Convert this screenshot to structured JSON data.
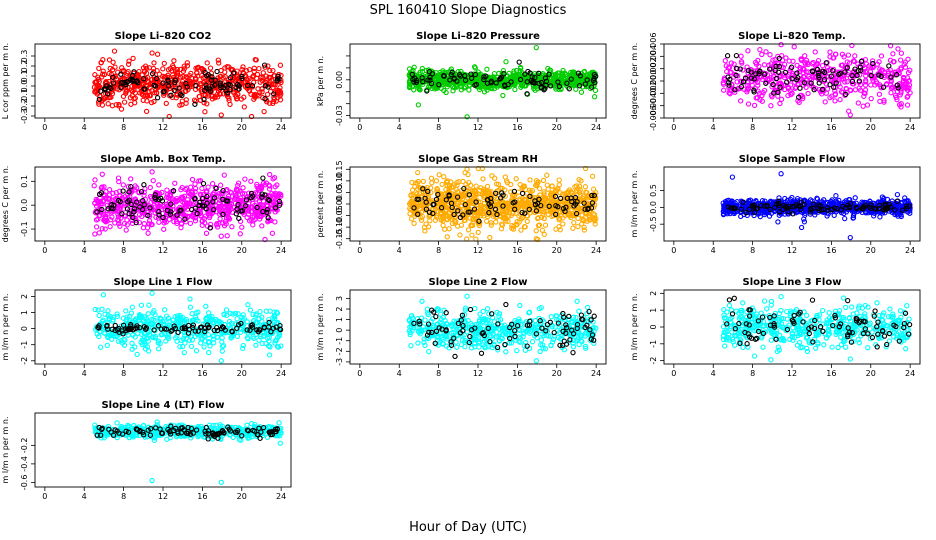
{
  "page": {
    "title": "SPL  160410  Slope Diagnostics",
    "xlabel": "Hour of Day (UTC)"
  },
  "chart_data": [
    {
      "type": "scatter",
      "title": "Slope Li–820 CO2",
      "ylabel": "L cor ppm per m n.",
      "xlim": [
        -1,
        25
      ],
      "ylim": [
        -0.32,
        0.42
      ],
      "xticks": [
        0,
        4,
        8,
        12,
        16,
        20,
        24
      ],
      "yticks": [
        -0.3,
        -0.2,
        -0.1,
        0.0,
        0.1,
        0.2,
        0.3
      ],
      "ytick_labels": [
        "-0.3",
        "-0.2",
        "-0.1",
        "0.0",
        "0.1",
        "0.2",
        "0.3"
      ],
      "color": "#ff0000",
      "series": [
        {
          "name": "colored points",
          "x_range": [
            5,
            24
          ],
          "center": 0.02,
          "spread": 0.1,
          "outliers": [
            0.33,
            -0.29
          ],
          "count": 600
        },
        {
          "name": "black points",
          "x_range": [
            5.3,
            24
          ],
          "center": 0.02,
          "spread": 0.07,
          "count": 100
        }
      ]
    },
    {
      "type": "scatter",
      "title": "Slope Li–820 Pressure",
      "ylabel": "kPa per m n.",
      "xlim": [
        -1,
        25
      ],
      "ylim": [
        -0.032,
        0.03
      ],
      "xticks": [
        0,
        4,
        8,
        12,
        16,
        20,
        24
      ],
      "yticks": [
        -0.03,
        -0.02,
        -0.01,
        0.0,
        0.01,
        0.02
      ],
      "ytick_labels": [
        "-0.03",
        "",
        "",
        "0.00",
        "",
        ""
      ],
      "color": "#00cc00",
      "series": [
        {
          "name": "colored points",
          "x_range": [
            5,
            24
          ],
          "center": 0.0,
          "spread": 0.004,
          "outliers": [
            -0.031,
            0.027,
            -0.021
          ],
          "count": 800
        },
        {
          "name": "black points",
          "x_range": [
            5.3,
            24
          ],
          "center": 0.0,
          "spread": 0.004,
          "count": 90
        }
      ]
    },
    {
      "type": "scatter",
      "title": "Slope Li–820 Temp.",
      "ylabel": "degrees C per m n.",
      "xlim": [
        -1,
        25
      ],
      "ylim": [
        -0.006,
        0.006
      ],
      "xticks": [
        0,
        4,
        8,
        12,
        16,
        20,
        24
      ],
      "yticks": [
        -0.006,
        -0.004,
        -0.002,
        0.0,
        0.002,
        0.004,
        0.006
      ],
      "ytick_labels": [
        "-0.006",
        "-0.004",
        "-0.002",
        "0.000",
        "0.002",
        "0.004",
        "0.006"
      ],
      "color": "#ff00ff",
      "series": [
        {
          "name": "colored points",
          "x_range": [
            5,
            24
          ],
          "center": 0.0005,
          "spread": 0.002,
          "outliers": [
            0.0059,
            -0.0055
          ],
          "count": 500
        },
        {
          "name": "black points",
          "x_range": [
            5.3,
            24
          ],
          "center": 0.0005,
          "spread": 0.0015,
          "count": 90
        }
      ]
    },
    {
      "type": "scatter",
      "title": "Slope Amb. Box Temp.",
      "ylabel": "degrees C per m n.",
      "xlim": [
        -1,
        25
      ],
      "ylim": [
        -0.15,
        0.16
      ],
      "xticks": [
        0,
        4,
        8,
        12,
        16,
        20,
        24
      ],
      "yticks": [
        -0.1,
        0.0,
        0.1
      ],
      "ytick_labels": [
        "-0.1",
        "0.0",
        "0.1"
      ],
      "color": "#ff00ff",
      "series": [
        {
          "name": "colored points",
          "x_range": [
            5,
            24
          ],
          "center": 0.0,
          "spread": 0.05,
          "outliers": [
            0.14,
            -0.13
          ],
          "count": 700
        },
        {
          "name": "black points",
          "x_range": [
            5.3,
            24
          ],
          "center": 0.0,
          "spread": 0.04,
          "count": 100
        }
      ]
    },
    {
      "type": "scatter",
      "title": "Slope Gas Stream RH",
      "ylabel": "percent per m n.",
      "xlim": [
        -1,
        25
      ],
      "ylim": [
        -0.16,
        0.16
      ],
      "xticks": [
        0,
        4,
        8,
        12,
        16,
        20,
        24
      ],
      "yticks": [
        -0.15,
        -0.1,
        -0.05,
        0.0,
        0.05,
        0.1,
        0.15
      ],
      "ytick_labels": [
        "-0.15",
        "-0.10",
        "-0.05",
        "0.00",
        "0.05",
        "0.10",
        "0.15"
      ],
      "color": "#ffaa00",
      "series": [
        {
          "name": "colored points",
          "x_range": [
            5,
            24
          ],
          "center": 0.0,
          "spread": 0.05,
          "outliers": [
            0.15,
            -0.15
          ],
          "count": 900
        },
        {
          "name": "black points",
          "x_range": [
            5.3,
            24
          ],
          "center": 0.0,
          "spread": 0.03,
          "count": 90
        }
      ]
    },
    {
      "type": "scatter",
      "title": "Slope Sample Flow",
      "ylabel": "m l/m n per m n.",
      "xlim": [
        -1,
        25
      ],
      "ylim": [
        -1.0,
        1.2
      ],
      "xticks": [
        0,
        4,
        8,
        12,
        16,
        20,
        24
      ],
      "yticks": [
        -0.5,
        0.0,
        0.5
      ],
      "ytick_labels": [
        "-0.5",
        "0.0",
        "0.5"
      ],
      "color": "#0000ff",
      "series": [
        {
          "name": "colored points",
          "x_range": [
            5,
            24
          ],
          "center": 0.0,
          "spread": 0.12,
          "outliers": [
            1.0,
            -0.9,
            0.9,
            -0.6
          ],
          "count": 700
        },
        {
          "name": "black points",
          "x_range": [
            5.3,
            24
          ],
          "center": 0.0,
          "spread": 0.08,
          "count": 100
        }
      ]
    },
    {
      "type": "scatter",
      "title": "Slope Line 1 Flow",
      "ylabel": "m l/m n per m n.",
      "xlim": [
        -1,
        25
      ],
      "ylim": [
        -2.2,
        2.4
      ],
      "xticks": [
        0,
        4,
        8,
        12,
        16,
        20,
        24
      ],
      "yticks": [
        -2,
        -1,
        0,
        1,
        2
      ],
      "ytick_labels": [
        "-2",
        "-1",
        "0",
        "1",
        "2"
      ],
      "color": "#00ffff",
      "series": [
        {
          "name": "colored points",
          "x_range": [
            5,
            24
          ],
          "center": 0.0,
          "spread": 0.6,
          "outliers": [
            2.2,
            -2.0,
            2.1
          ],
          "count": 500
        },
        {
          "name": "black points",
          "x_range": [
            5.3,
            24
          ],
          "center": 0.0,
          "spread": 0.15,
          "count": 90
        }
      ]
    },
    {
      "type": "scatter",
      "title": "Slope Line 2 Flow",
      "ylabel": "m l/m n per m n.",
      "xlim": [
        -1,
        25
      ],
      "ylim": [
        -3.2,
        3.8
      ],
      "xticks": [
        0,
        4,
        8,
        12,
        16,
        20,
        24
      ],
      "yticks": [
        -3,
        -2,
        -1,
        0,
        1,
        2,
        3
      ],
      "ytick_labels": [
        "-3",
        "-2",
        "-1",
        "0",
        "1",
        "2",
        "3"
      ],
      "color": "#00ffff",
      "series": [
        {
          "name": "colored points",
          "x_range": [
            5,
            24
          ],
          "center": 0.0,
          "spread": 0.9,
          "outliers": [
            3.2,
            -2.9
          ],
          "count": 500
        },
        {
          "name": "black points",
          "x_range": [
            5.3,
            24
          ],
          "center": 0.0,
          "spread": 1.1,
          "count": 90
        }
      ]
    },
    {
      "type": "scatter",
      "title": "Slope Line 3 Flow",
      "ylabel": "m l/m n per m n.",
      "xlim": [
        -1,
        25
      ],
      "ylim": [
        -2.2,
        2.2
      ],
      "xticks": [
        0,
        4,
        8,
        12,
        16,
        20,
        24
      ],
      "yticks": [
        -2,
        -1,
        0,
        1,
        2
      ],
      "ytick_labels": [
        "-2",
        "-1",
        "0",
        "1",
        "2"
      ],
      "color": "#00ffff",
      "series": [
        {
          "name": "colored points",
          "x_range": [
            5,
            24
          ],
          "center": 0.0,
          "spread": 0.6,
          "outliers": [
            1.8,
            -1.9
          ],
          "count": 500
        },
        {
          "name": "black points",
          "x_range": [
            5.3,
            24
          ],
          "center": 0.1,
          "spread": 0.6,
          "count": 90
        }
      ]
    },
    {
      "type": "scatter",
      "title": "Slope Line 4 (LT) Flow",
      "ylabel": "m l/m n per m n.",
      "xlim": [
        -1,
        25
      ],
      "ylim": [
        -0.65,
        0.15
      ],
      "xticks": [
        0,
        4,
        8,
        12,
        16,
        20,
        24
      ],
      "yticks": [
        -0.6,
        -0.4,
        -0.2
      ],
      "ytick_labels": [
        "-0.6",
        "-0.4",
        "-0.2"
      ],
      "color": "#00ffff",
      "series": [
        {
          "name": "colored points",
          "x_range": [
            5,
            24
          ],
          "center": -0.05,
          "spread": 0.035,
          "outliers": [
            -0.58,
            -0.6
          ],
          "count": 500
        },
        {
          "name": "black points",
          "x_range": [
            5.3,
            24
          ],
          "center": -0.05,
          "spread": 0.03,
          "count": 100
        }
      ]
    }
  ]
}
